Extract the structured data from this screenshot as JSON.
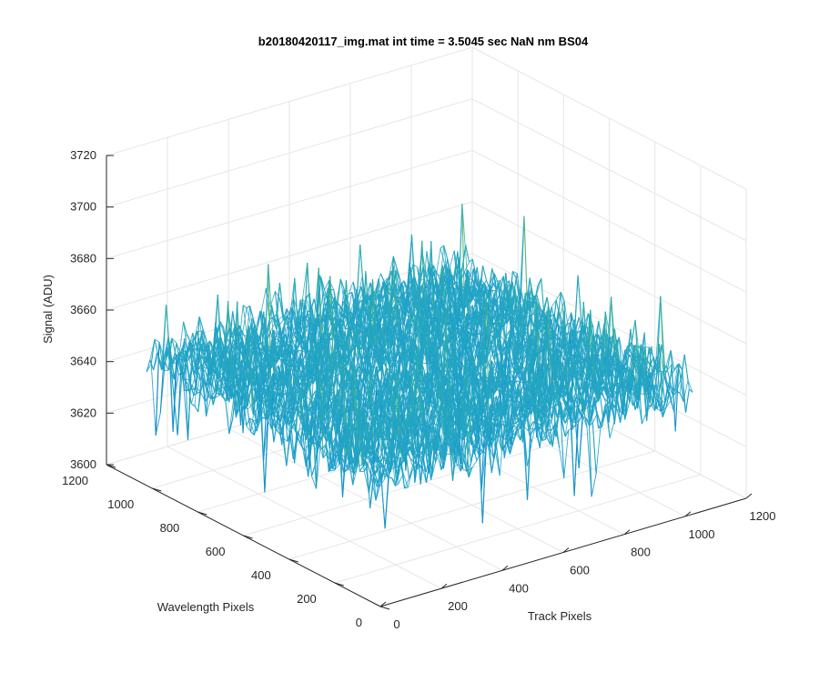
{
  "chart_data": {
    "type": "surface",
    "title": "b20180420117_img.mat int time = 3.5045 sec  NaN nm BS04",
    "xlabel": "Track Pixels",
    "ylabel": "Wavelength Pixels",
    "zlabel": "Signal (ADU)",
    "xlim": [
      0,
      1200
    ],
    "ylim": [
      0,
      1200
    ],
    "zlim": [
      3600,
      3720
    ],
    "x_ticks": [
      "0",
      "200",
      "400",
      "600",
      "800",
      "1000",
      "1200"
    ],
    "y_ticks": [
      "0",
      "200",
      "400",
      "600",
      "800",
      "1000",
      "1200"
    ],
    "z_ticks": [
      "3600",
      "3620",
      "3640",
      "3660",
      "3680",
      "3700",
      "3720"
    ],
    "data_extent": {
      "x": [
        0,
        1024
      ],
      "y": [
        0,
        1024
      ]
    },
    "signal_mean": 3650,
    "signal_range": [
      3612,
      3698
    ],
    "grid": true,
    "colormap": "parula",
    "colors": {
      "low": "#0072BD",
      "mid_low": "#1597CE",
      "mid": "#26A7C4",
      "mid_high": "#35B58F",
      "high": "#EDB120",
      "axis": "#262626",
      "grid": "#E6E6E6"
    }
  }
}
